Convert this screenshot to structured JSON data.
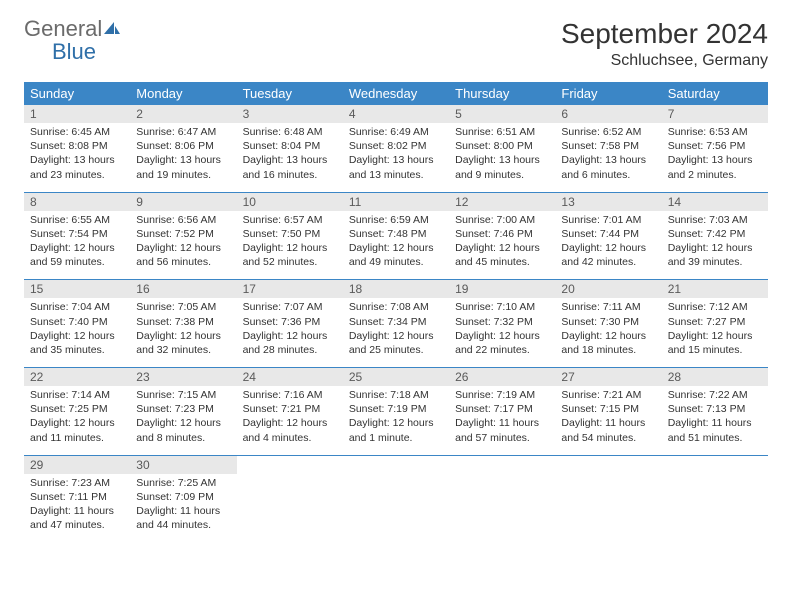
{
  "logo": {
    "general": "General",
    "blue": "Blue"
  },
  "title": "September 2024",
  "location": "Schluchsee, Germany",
  "colors": {
    "header_bg": "#3b86c6",
    "header_text": "#ffffff",
    "daynum_bg": "#e8e8e8",
    "daynum_text": "#5a5a5a",
    "body_text": "#333333",
    "logo_gray": "#6b6b6b",
    "logo_blue": "#2f6fa8",
    "divider": "#3b86c6",
    "page_bg": "#ffffff"
  },
  "typography": {
    "title_fontsize": 28,
    "location_fontsize": 16,
    "dow_fontsize": 13,
    "daynum_fontsize": 12,
    "body_fontsize": 10.5,
    "font_family": "Arial"
  },
  "dow": [
    "Sunday",
    "Monday",
    "Tuesday",
    "Wednesday",
    "Thursday",
    "Friday",
    "Saturday"
  ],
  "weeks": [
    [
      {
        "n": "1",
        "sr": "Sunrise: 6:45 AM",
        "ss": "Sunset: 8:08 PM",
        "dl": "Daylight: 13 hours and 23 minutes."
      },
      {
        "n": "2",
        "sr": "Sunrise: 6:47 AM",
        "ss": "Sunset: 8:06 PM",
        "dl": "Daylight: 13 hours and 19 minutes."
      },
      {
        "n": "3",
        "sr": "Sunrise: 6:48 AM",
        "ss": "Sunset: 8:04 PM",
        "dl": "Daylight: 13 hours and 16 minutes."
      },
      {
        "n": "4",
        "sr": "Sunrise: 6:49 AM",
        "ss": "Sunset: 8:02 PM",
        "dl": "Daylight: 13 hours and 13 minutes."
      },
      {
        "n": "5",
        "sr": "Sunrise: 6:51 AM",
        "ss": "Sunset: 8:00 PM",
        "dl": "Daylight: 13 hours and 9 minutes."
      },
      {
        "n": "6",
        "sr": "Sunrise: 6:52 AM",
        "ss": "Sunset: 7:58 PM",
        "dl": "Daylight: 13 hours and 6 minutes."
      },
      {
        "n": "7",
        "sr": "Sunrise: 6:53 AM",
        "ss": "Sunset: 7:56 PM",
        "dl": "Daylight: 13 hours and 2 minutes."
      }
    ],
    [
      {
        "n": "8",
        "sr": "Sunrise: 6:55 AM",
        "ss": "Sunset: 7:54 PM",
        "dl": "Daylight: 12 hours and 59 minutes."
      },
      {
        "n": "9",
        "sr": "Sunrise: 6:56 AM",
        "ss": "Sunset: 7:52 PM",
        "dl": "Daylight: 12 hours and 56 minutes."
      },
      {
        "n": "10",
        "sr": "Sunrise: 6:57 AM",
        "ss": "Sunset: 7:50 PM",
        "dl": "Daylight: 12 hours and 52 minutes."
      },
      {
        "n": "11",
        "sr": "Sunrise: 6:59 AM",
        "ss": "Sunset: 7:48 PM",
        "dl": "Daylight: 12 hours and 49 minutes."
      },
      {
        "n": "12",
        "sr": "Sunrise: 7:00 AM",
        "ss": "Sunset: 7:46 PM",
        "dl": "Daylight: 12 hours and 45 minutes."
      },
      {
        "n": "13",
        "sr": "Sunrise: 7:01 AM",
        "ss": "Sunset: 7:44 PM",
        "dl": "Daylight: 12 hours and 42 minutes."
      },
      {
        "n": "14",
        "sr": "Sunrise: 7:03 AM",
        "ss": "Sunset: 7:42 PM",
        "dl": "Daylight: 12 hours and 39 minutes."
      }
    ],
    [
      {
        "n": "15",
        "sr": "Sunrise: 7:04 AM",
        "ss": "Sunset: 7:40 PM",
        "dl": "Daylight: 12 hours and 35 minutes."
      },
      {
        "n": "16",
        "sr": "Sunrise: 7:05 AM",
        "ss": "Sunset: 7:38 PM",
        "dl": "Daylight: 12 hours and 32 minutes."
      },
      {
        "n": "17",
        "sr": "Sunrise: 7:07 AM",
        "ss": "Sunset: 7:36 PM",
        "dl": "Daylight: 12 hours and 28 minutes."
      },
      {
        "n": "18",
        "sr": "Sunrise: 7:08 AM",
        "ss": "Sunset: 7:34 PM",
        "dl": "Daylight: 12 hours and 25 minutes."
      },
      {
        "n": "19",
        "sr": "Sunrise: 7:10 AM",
        "ss": "Sunset: 7:32 PM",
        "dl": "Daylight: 12 hours and 22 minutes."
      },
      {
        "n": "20",
        "sr": "Sunrise: 7:11 AM",
        "ss": "Sunset: 7:30 PM",
        "dl": "Daylight: 12 hours and 18 minutes."
      },
      {
        "n": "21",
        "sr": "Sunrise: 7:12 AM",
        "ss": "Sunset: 7:27 PM",
        "dl": "Daylight: 12 hours and 15 minutes."
      }
    ],
    [
      {
        "n": "22",
        "sr": "Sunrise: 7:14 AM",
        "ss": "Sunset: 7:25 PM",
        "dl": "Daylight: 12 hours and 11 minutes."
      },
      {
        "n": "23",
        "sr": "Sunrise: 7:15 AM",
        "ss": "Sunset: 7:23 PM",
        "dl": "Daylight: 12 hours and 8 minutes."
      },
      {
        "n": "24",
        "sr": "Sunrise: 7:16 AM",
        "ss": "Sunset: 7:21 PM",
        "dl": "Daylight: 12 hours and 4 minutes."
      },
      {
        "n": "25",
        "sr": "Sunrise: 7:18 AM",
        "ss": "Sunset: 7:19 PM",
        "dl": "Daylight: 12 hours and 1 minute."
      },
      {
        "n": "26",
        "sr": "Sunrise: 7:19 AM",
        "ss": "Sunset: 7:17 PM",
        "dl": "Daylight: 11 hours and 57 minutes."
      },
      {
        "n": "27",
        "sr": "Sunrise: 7:21 AM",
        "ss": "Sunset: 7:15 PM",
        "dl": "Daylight: 11 hours and 54 minutes."
      },
      {
        "n": "28",
        "sr": "Sunrise: 7:22 AM",
        "ss": "Sunset: 7:13 PM",
        "dl": "Daylight: 11 hours and 51 minutes."
      }
    ],
    [
      {
        "n": "29",
        "sr": "Sunrise: 7:23 AM",
        "ss": "Sunset: 7:11 PM",
        "dl": "Daylight: 11 hours and 47 minutes."
      },
      {
        "n": "30",
        "sr": "Sunrise: 7:25 AM",
        "ss": "Sunset: 7:09 PM",
        "dl": "Daylight: 11 hours and 44 minutes."
      },
      null,
      null,
      null,
      null,
      null
    ]
  ]
}
